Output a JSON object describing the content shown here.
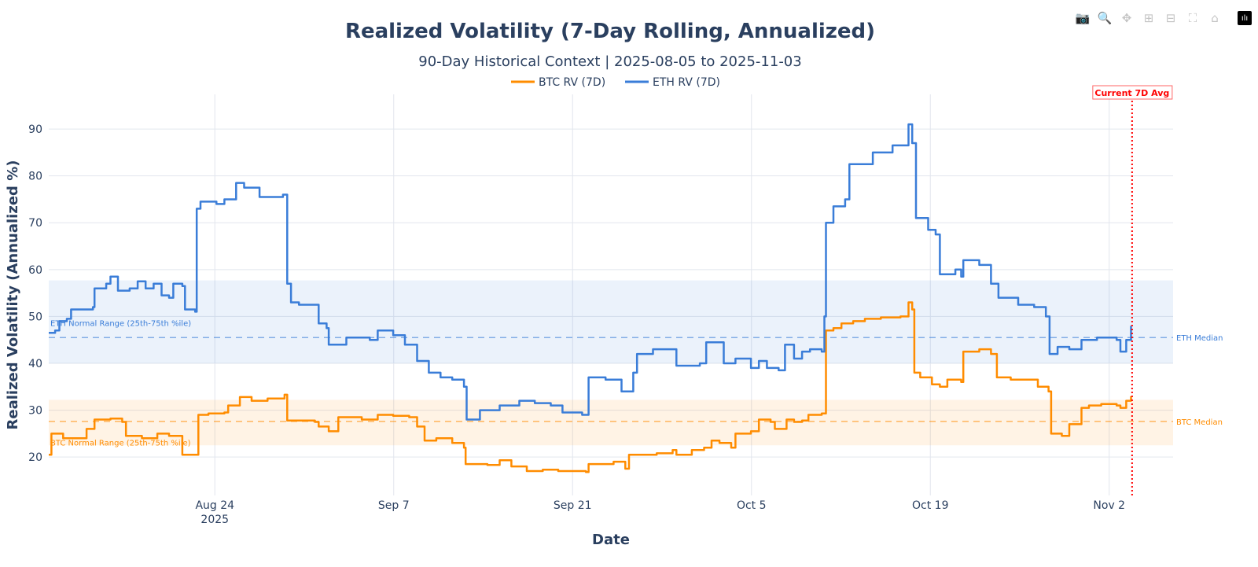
{
  "modebar": [
    {
      "name": "camera-icon",
      "glyph": "📷"
    },
    {
      "name": "zoom-icon",
      "glyph": "🔍"
    },
    {
      "name": "pan-icon",
      "glyph": "✥"
    },
    {
      "name": "zoom-in-icon",
      "glyph": "⊞"
    },
    {
      "name": "zoom-out-icon",
      "glyph": "⊟"
    },
    {
      "name": "autoscale-icon",
      "glyph": "⛶"
    },
    {
      "name": "reset-axes-icon",
      "glyph": "⌂"
    },
    {
      "name": "plotly-logo-icon",
      "glyph": "ılı"
    }
  ],
  "chart_data": {
    "type": "line",
    "title": "Realized Volatility (7-Day Rolling, Annualized)",
    "subtitle": "90-Day Historical Context | 2025-08-05 to 2025-11-03",
    "xlabel": "Date",
    "ylabel": "Realized Volatility (Annualized %)",
    "xlim": [
      "2025-08-11T00:00",
      "2025-11-07T00:00"
    ],
    "ylim": [
      11.8,
      97.4
    ],
    "x_ticks": [
      {
        "date": "2025-08-24",
        "label": "Aug 24",
        "sublabel": "2025"
      },
      {
        "date": "2025-09-07",
        "label": "Sep 7"
      },
      {
        "date": "2025-09-21",
        "label": "Sep 21"
      },
      {
        "date": "2025-10-05",
        "label": "Oct 5"
      },
      {
        "date": "2025-10-19",
        "label": "Oct 19"
      },
      {
        "date": "2025-11-02",
        "label": "Nov 2"
      }
    ],
    "y_ticks": [
      20,
      30,
      40,
      50,
      60,
      70,
      80,
      90
    ],
    "grid": true,
    "legend_position": "top-center",
    "line_shape": "step",
    "series": [
      {
        "name": "BTC RV (7D)",
        "color": "#ff8c00",
        "points": [
          [
            "2025-08-11T00:00",
            20.5
          ],
          [
            "2025-08-11T05:00",
            25
          ],
          [
            "2025-08-12T03:00",
            24
          ],
          [
            "2025-08-13T01:00",
            24
          ],
          [
            "2025-08-13T23:00",
            26
          ],
          [
            "2025-08-14T14:00",
            28
          ],
          [
            "2025-08-15T20:00",
            28.2
          ],
          [
            "2025-08-16T18:00",
            27.5
          ],
          [
            "2025-08-17T01:00",
            24.5
          ],
          [
            "2025-08-18T07:00",
            24
          ],
          [
            "2025-08-19T12:00",
            25
          ],
          [
            "2025-08-20T10:00",
            24.5
          ],
          [
            "2025-08-21T11:00",
            20.5
          ],
          [
            "2025-08-22T11:00",
            20.5
          ],
          [
            "2025-08-22T17:00",
            29
          ],
          [
            "2025-08-23T12:00",
            29.3
          ],
          [
            "2025-08-24T18:00",
            29.5
          ],
          [
            "2025-08-25T01:00",
            31
          ],
          [
            "2025-08-25T16:00",
            31
          ],
          [
            "2025-08-25T23:00",
            32.8
          ],
          [
            "2025-08-26T21:00",
            32
          ],
          [
            "2025-08-28T03:00",
            32.5
          ],
          [
            "2025-08-29T11:00",
            33.3
          ],
          [
            "2025-08-29T16:00",
            27.8
          ],
          [
            "2025-08-30T14:00",
            27.8
          ],
          [
            "2025-08-31T20:00",
            27.5
          ],
          [
            "2025-09-01T03:00",
            26.5
          ],
          [
            "2025-09-01T22:00",
            25.5
          ],
          [
            "2025-09-02T16:00",
            28.5
          ],
          [
            "2025-09-04T12:00",
            28
          ],
          [
            "2025-09-05T18:00",
            29
          ],
          [
            "2025-09-06T23:00",
            28.8
          ],
          [
            "2025-09-08T05:00",
            28.5
          ],
          [
            "2025-09-08T20:00",
            26.5
          ],
          [
            "2025-09-09T10:00",
            23.5
          ],
          [
            "2025-09-10T08:00",
            24
          ],
          [
            "2025-09-11T14:00",
            23
          ],
          [
            "2025-09-12T12:00",
            22
          ],
          [
            "2025-09-12T15:00",
            18.5
          ],
          [
            "2025-09-14T08:00",
            18.3
          ],
          [
            "2025-09-15T07:00",
            19.3
          ],
          [
            "2025-09-16T05:00",
            18
          ],
          [
            "2025-09-17T10:00",
            17
          ],
          [
            "2025-09-18T16:00",
            17.3
          ],
          [
            "2025-09-19T21:00",
            17
          ],
          [
            "2025-09-22T01:00",
            16.8
          ],
          [
            "2025-09-22T06:00",
            18.5
          ],
          [
            "2025-09-24T05:00",
            19
          ],
          [
            "2025-09-25T03:00",
            17.5
          ],
          [
            "2025-09-25T10:00",
            20.5
          ],
          [
            "2025-09-27T14:00",
            20.8
          ],
          [
            "2025-09-28T20:00",
            21.5
          ],
          [
            "2025-09-29T03:00",
            20.5
          ],
          [
            "2025-09-30T08:00",
            21.5
          ],
          [
            "2025-10-01T07:00",
            22
          ],
          [
            "2025-10-01T21:00",
            23.5
          ],
          [
            "2025-10-02T12:00",
            23
          ],
          [
            "2025-10-03T10:00",
            22
          ],
          [
            "2025-10-03T18:00",
            25
          ],
          [
            "2025-10-04T23:00",
            25.5
          ],
          [
            "2025-10-05T14:00",
            28
          ],
          [
            "2025-10-06T12:00",
            27.5
          ],
          [
            "2025-10-06T20:00",
            26
          ],
          [
            "2025-10-07T18:00",
            28
          ],
          [
            "2025-10-08T08:00",
            27.5
          ],
          [
            "2025-10-08T23:00",
            27.8
          ],
          [
            "2025-10-09T11:00",
            29
          ],
          [
            "2025-10-10T12:00",
            29.3
          ],
          [
            "2025-10-10T20:00",
            47
          ],
          [
            "2025-10-11T10:00",
            47.5
          ],
          [
            "2025-10-12T01:00",
            48.5
          ],
          [
            "2025-10-12T23:00",
            49
          ],
          [
            "2025-10-13T21:00",
            49.5
          ],
          [
            "2025-10-15T03:00",
            49.8
          ],
          [
            "2025-10-16T16:00",
            50
          ],
          [
            "2025-10-17T07:00",
            53
          ],
          [
            "2025-10-17T14:00",
            51.5
          ],
          [
            "2025-10-17T18:00",
            38
          ],
          [
            "2025-10-18T05:00",
            37
          ],
          [
            "2025-10-19T03:00",
            35.5
          ],
          [
            "2025-10-19T18:00",
            35
          ],
          [
            "2025-10-20T08:00",
            36.5
          ],
          [
            "2025-10-21T10:00",
            36
          ],
          [
            "2025-10-21T14:00",
            42.5
          ],
          [
            "2025-10-22T20:00",
            43
          ],
          [
            "2025-10-23T18:00",
            42
          ],
          [
            "2025-10-24T05:00",
            37
          ],
          [
            "2025-10-25T07:00",
            36.5
          ],
          [
            "2025-10-26T19:00",
            36.5
          ],
          [
            "2025-10-27T10:00",
            35
          ],
          [
            "2025-10-28T06:00",
            34
          ],
          [
            "2025-10-28T11:00",
            25
          ],
          [
            "2025-10-29T07:00",
            24.5
          ],
          [
            "2025-10-29T21:00",
            27
          ],
          [
            "2025-10-30T20:00",
            30.5
          ],
          [
            "2025-10-31T10:00",
            31
          ],
          [
            "2025-11-01T09:00",
            31.3
          ],
          [
            "2025-11-02T14:00",
            31
          ],
          [
            "2025-11-02T21:00",
            30.5
          ],
          [
            "2025-11-03T08:00",
            32
          ],
          [
            "2025-11-03T17:00",
            33
          ]
        ]
      },
      {
        "name": "ETH RV (7D)",
        "color": "#3a7dd8",
        "points": [
          [
            "2025-08-11T00:00",
            46.5
          ],
          [
            "2025-08-11T12:00",
            47
          ],
          [
            "2025-08-11T20:00",
            49
          ],
          [
            "2025-08-12T10:00",
            49.5
          ],
          [
            "2025-08-12T18:00",
            51.5
          ],
          [
            "2025-08-14T11:00",
            52
          ],
          [
            "2025-08-14T14:00",
            56
          ],
          [
            "2025-08-15T12:00",
            57
          ],
          [
            "2025-08-15T20:00",
            58.5
          ],
          [
            "2025-08-16T10:00",
            55.5
          ],
          [
            "2025-08-17T08:00",
            56
          ],
          [
            "2025-08-17T23:00",
            57.5
          ],
          [
            "2025-08-18T14:00",
            56
          ],
          [
            "2025-08-19T05:00",
            57
          ],
          [
            "2025-08-19T20:00",
            54.5
          ],
          [
            "2025-08-20T10:00",
            54
          ],
          [
            "2025-08-20T18:00",
            57
          ],
          [
            "2025-08-21T11:00",
            56.5
          ],
          [
            "2025-08-21T16:00",
            51.5
          ],
          [
            "2025-08-22T11:00",
            51
          ],
          [
            "2025-08-22T14:00",
            73
          ],
          [
            "2025-08-22T21:00",
            74.5
          ],
          [
            "2025-08-24T03:00",
            74
          ],
          [
            "2025-08-24T18:00",
            75
          ],
          [
            "2025-08-25T16:00",
            78.5
          ],
          [
            "2025-08-26T07:00",
            77.5
          ],
          [
            "2025-08-27T12:00",
            75.5
          ],
          [
            "2025-08-29T08:00",
            76
          ],
          [
            "2025-08-29T16:00",
            57
          ],
          [
            "2025-08-29T23:00",
            53
          ],
          [
            "2025-08-30T14:00",
            52.5
          ],
          [
            "2025-08-31T20:00",
            52.5
          ],
          [
            "2025-09-01T03:00",
            48.5
          ],
          [
            "2025-09-01T18:00",
            47.5
          ],
          [
            "2025-09-01T22:00",
            44
          ],
          [
            "2025-09-03T07:00",
            45.5
          ],
          [
            "2025-09-05T03:00",
            45
          ],
          [
            "2025-09-05T18:00",
            47
          ],
          [
            "2025-09-06T23:00",
            46
          ],
          [
            "2025-09-07T21:00",
            44
          ],
          [
            "2025-09-08T20:00",
            40.5
          ],
          [
            "2025-09-09T18:00",
            38
          ],
          [
            "2025-09-10T16:00",
            37
          ],
          [
            "2025-09-11T14:00",
            36.5
          ],
          [
            "2025-09-12T12:00",
            35
          ],
          [
            "2025-09-12T17:00",
            28
          ],
          [
            "2025-09-13T18:00",
            30
          ],
          [
            "2025-09-15T07:00",
            31
          ],
          [
            "2025-09-16T20:00",
            32
          ],
          [
            "2025-09-18T01:00",
            31.5
          ],
          [
            "2025-09-19T07:00",
            31
          ],
          [
            "2025-09-20T05:00",
            29.5
          ],
          [
            "2025-09-21T18:00",
            29
          ],
          [
            "2025-09-22T06:00",
            37
          ],
          [
            "2025-09-23T14:00",
            36.5
          ],
          [
            "2025-09-24T20:00",
            34
          ],
          [
            "2025-09-25T18:00",
            38
          ],
          [
            "2025-09-26T01:00",
            42
          ],
          [
            "2025-09-27T07:00",
            43
          ],
          [
            "2025-09-28T20:00",
            43
          ],
          [
            "2025-09-29T03:00",
            39.5
          ],
          [
            "2025-09-30T23:00",
            40
          ],
          [
            "2025-10-01T11:00",
            44.5
          ],
          [
            "2025-10-02T05:00",
            44.5
          ],
          [
            "2025-10-02T20:00",
            40
          ],
          [
            "2025-10-03T18:00",
            41
          ],
          [
            "2025-10-04T23:00",
            39
          ],
          [
            "2025-10-05T14:00",
            40.5
          ],
          [
            "2025-10-06T05:00",
            39
          ],
          [
            "2025-10-07T03:00",
            38.5
          ],
          [
            "2025-10-07T15:00",
            44
          ],
          [
            "2025-10-08T08:00",
            41
          ],
          [
            "2025-10-08T23:00",
            42.5
          ],
          [
            "2025-10-09T14:00",
            43
          ],
          [
            "2025-10-10T12:00",
            42.5
          ],
          [
            "2025-10-10T17:00",
            50
          ],
          [
            "2025-10-10T20:00",
            70
          ],
          [
            "2025-10-11T10:00",
            73.5
          ],
          [
            "2025-10-12T08:00",
            75
          ],
          [
            "2025-10-12T16:00",
            82.5
          ],
          [
            "2025-10-13T14:00",
            82.5
          ],
          [
            "2025-10-14T12:00",
            85
          ],
          [
            "2025-10-16T01:00",
            86.5
          ],
          [
            "2025-10-16T16:00",
            86.5
          ],
          [
            "2025-10-17T07:00",
            91
          ],
          [
            "2025-10-17T14:00",
            87
          ],
          [
            "2025-10-17T21:00",
            71
          ],
          [
            "2025-10-18T20:00",
            68.5
          ],
          [
            "2025-10-19T10:00",
            67.5
          ],
          [
            "2025-10-19T18:00",
            59
          ],
          [
            "2025-10-20T23:00",
            60
          ],
          [
            "2025-10-21T10:00",
            58.5
          ],
          [
            "2025-10-21T14:00",
            62
          ],
          [
            "2025-10-22T20:00",
            61
          ],
          [
            "2025-10-23T18:00",
            57
          ],
          [
            "2025-10-24T08:00",
            54
          ],
          [
            "2025-10-25T21:00",
            52.5
          ],
          [
            "2025-10-27T03:00",
            52
          ],
          [
            "2025-10-28T01:00",
            50
          ],
          [
            "2025-10-28T08:00",
            42
          ],
          [
            "2025-10-28T23:00",
            43.5
          ],
          [
            "2025-10-29T21:00",
            43
          ],
          [
            "2025-10-30T20:00",
            45
          ],
          [
            "2025-11-01T01:00",
            45.5
          ],
          [
            "2025-11-02T14:00",
            45
          ],
          [
            "2025-11-02T21:00",
            42.5
          ],
          [
            "2025-11-03T08:00",
            45
          ],
          [
            "2025-11-03T17:00",
            48
          ]
        ]
      }
    ],
    "bands": [
      {
        "label": "ETH Normal Range (25th-75th %ile)",
        "low": 40,
        "high": 57.7,
        "color": "#3a7dd8"
      },
      {
        "label": "BTC Normal Range (25th-75th %ile)",
        "low": 22.5,
        "high": 32.2,
        "color": "#ff8c00"
      }
    ],
    "medians": [
      {
        "label": "ETH Median",
        "value": 45.5,
        "color": "#3a7dd8"
      },
      {
        "label": "BTC Median",
        "value": 27.6,
        "color": "#ff8c00"
      }
    ],
    "vline": {
      "label": "Current 7D Avg",
      "date": "2025-11-03T19:00",
      "color": "#ff0000"
    }
  }
}
